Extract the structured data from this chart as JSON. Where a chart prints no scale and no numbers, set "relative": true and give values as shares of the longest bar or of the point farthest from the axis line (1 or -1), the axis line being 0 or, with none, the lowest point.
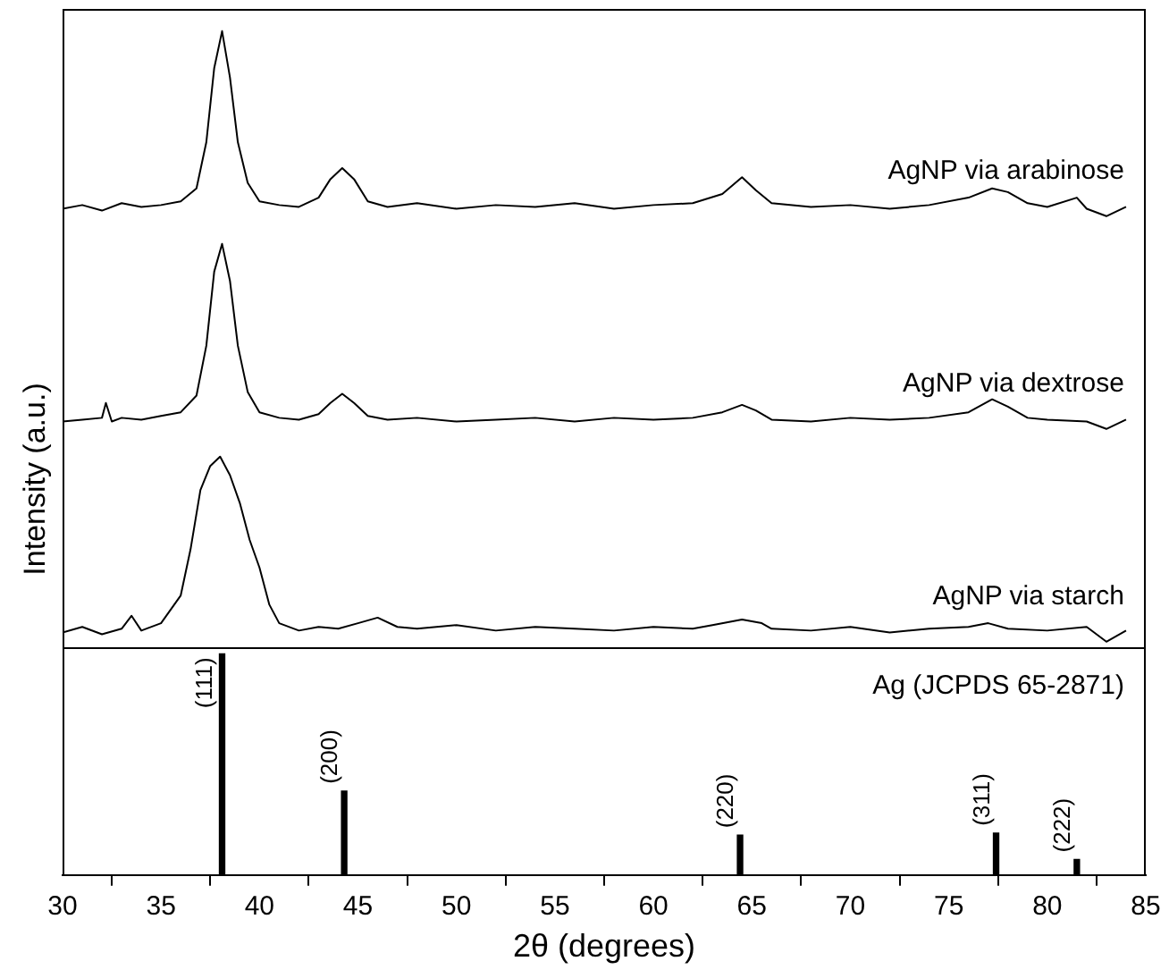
{
  "chart_data": [
    {
      "type": "line",
      "relative": true,
      "xlim": [
        30,
        85
      ],
      "tick_labels": false,
      "series": [
        {
          "name": "AgNP via arabinose",
          "color": "#000000",
          "x": [
            30,
            31,
            32,
            33,
            34,
            35,
            36,
            36.8,
            37.3,
            37.7,
            38.1,
            38.5,
            38.9,
            39.4,
            40,
            41,
            42,
            43,
            43.6,
            44.2,
            44.8,
            45.5,
            46.5,
            48,
            50,
            52,
            54,
            56,
            58,
            60,
            62,
            63.5,
            64.5,
            65.2,
            66,
            68,
            70,
            72,
            74,
            76,
            77.2,
            78,
            79,
            80,
            81.5,
            82,
            83,
            84
          ],
          "values": [
            0.04,
            0.06,
            0.03,
            0.07,
            0.05,
            0.06,
            0.08,
            0.15,
            0.4,
            0.8,
            1,
            0.75,
            0.4,
            0.18,
            0.08,
            0.06,
            0.05,
            0.1,
            0.2,
            0.26,
            0.2,
            0.08,
            0.05,
            0.07,
            0.04,
            0.06,
            0.05,
            0.07,
            0.04,
            0.06,
            0.07,
            0.12,
            0.21,
            0.14,
            0.07,
            0.05,
            0.06,
            0.04,
            0.06,
            0.1,
            0.15,
            0.13,
            0.07,
            0.05,
            0.1,
            0.04,
            0,
            0.05
          ]
        }
      ]
    },
    {
      "type": "line",
      "relative": true,
      "xlim": [
        30,
        85
      ],
      "tick_labels": false,
      "ylabel": "Intensity (a.u.)",
      "series": [
        {
          "name": "AgNP via dextrose",
          "color": "#000000",
          "x": [
            30,
            31,
            32,
            32.2,
            32.5,
            33,
            34,
            35,
            36,
            36.8,
            37.3,
            37.7,
            38.1,
            38.5,
            38.9,
            39.4,
            40,
            41,
            42,
            43,
            43.6,
            44.2,
            44.8,
            45.5,
            46.5,
            48,
            50,
            52,
            54,
            56,
            58,
            60,
            62,
            63.5,
            64.5,
            65.2,
            66,
            68,
            70,
            72,
            74,
            76,
            77.2,
            78,
            79,
            80,
            82,
            83,
            84
          ],
          "values": [
            0.04,
            0.05,
            0.06,
            0.14,
            0.04,
            0.06,
            0.05,
            0.07,
            0.09,
            0.18,
            0.45,
            0.85,
            1,
            0.8,
            0.45,
            0.2,
            0.09,
            0.06,
            0.05,
            0.08,
            0.14,
            0.19,
            0.14,
            0.07,
            0.05,
            0.06,
            0.04,
            0.05,
            0.06,
            0.04,
            0.06,
            0.05,
            0.06,
            0.09,
            0.13,
            0.1,
            0.05,
            0.04,
            0.06,
            0.05,
            0.06,
            0.09,
            0.16,
            0.12,
            0.06,
            0.05,
            0.04,
            0,
            0.05
          ]
        }
      ]
    },
    {
      "type": "line",
      "relative": true,
      "xlim": [
        30,
        85
      ],
      "tick_labels": false,
      "series": [
        {
          "name": "AgNP via starch",
          "color": "#000000",
          "x": [
            30,
            31,
            32,
            33,
            33.5,
            34,
            35,
            36,
            36.5,
            37,
            37.5,
            38,
            38.5,
            39,
            39.5,
            40,
            40.5,
            41,
            42,
            43,
            44,
            45,
            46,
            47,
            48,
            50,
            52,
            54,
            56,
            58,
            60,
            62,
            63,
            64.5,
            65.5,
            66,
            68,
            70,
            72,
            74,
            76,
            77,
            78,
            80,
            82,
            83,
            84
          ],
          "values": [
            0.05,
            0.08,
            0.04,
            0.07,
            0.14,
            0.06,
            0.1,
            0.25,
            0.5,
            0.82,
            0.95,
            1,
            0.9,
            0.75,
            0.55,
            0.4,
            0.2,
            0.1,
            0.06,
            0.08,
            0.07,
            0.1,
            0.13,
            0.08,
            0.07,
            0.09,
            0.06,
            0.08,
            0.07,
            0.06,
            0.08,
            0.07,
            0.09,
            0.12,
            0.1,
            0.07,
            0.06,
            0.08,
            0.05,
            0.07,
            0.08,
            0.1,
            0.07,
            0.06,
            0.08,
            0,
            0.06
          ]
        }
      ]
    },
    {
      "type": "bar",
      "relative": true,
      "xlim": [
        30,
        85
      ],
      "xticks": [
        30,
        35,
        40,
        45,
        50,
        55,
        60,
        65,
        70,
        75,
        80,
        85
      ],
      "xlabel": "2θ (degrees)",
      "annotations": [
        {
          "text": "(111)",
          "x": 38.1,
          "y": 1
        },
        {
          "text": "(200)",
          "x": 44.3,
          "y": 0.38
        },
        {
          "text": "(220)",
          "x": 64.4,
          "y": 0.18
        },
        {
          "text": "(311)",
          "x": 77.4,
          "y": 0.19
        },
        {
          "text": "(222)",
          "x": 81.5,
          "y": 0.07
        }
      ],
      "series": [
        {
          "name": "Ag (JCPDS 65-2871)",
          "color": "#000000",
          "x": [
            38.1,
            44.3,
            64.4,
            77.4,
            81.5
          ],
          "values": [
            1,
            0.38,
            0.18,
            0.19,
            0.07
          ]
        }
      ]
    }
  ]
}
